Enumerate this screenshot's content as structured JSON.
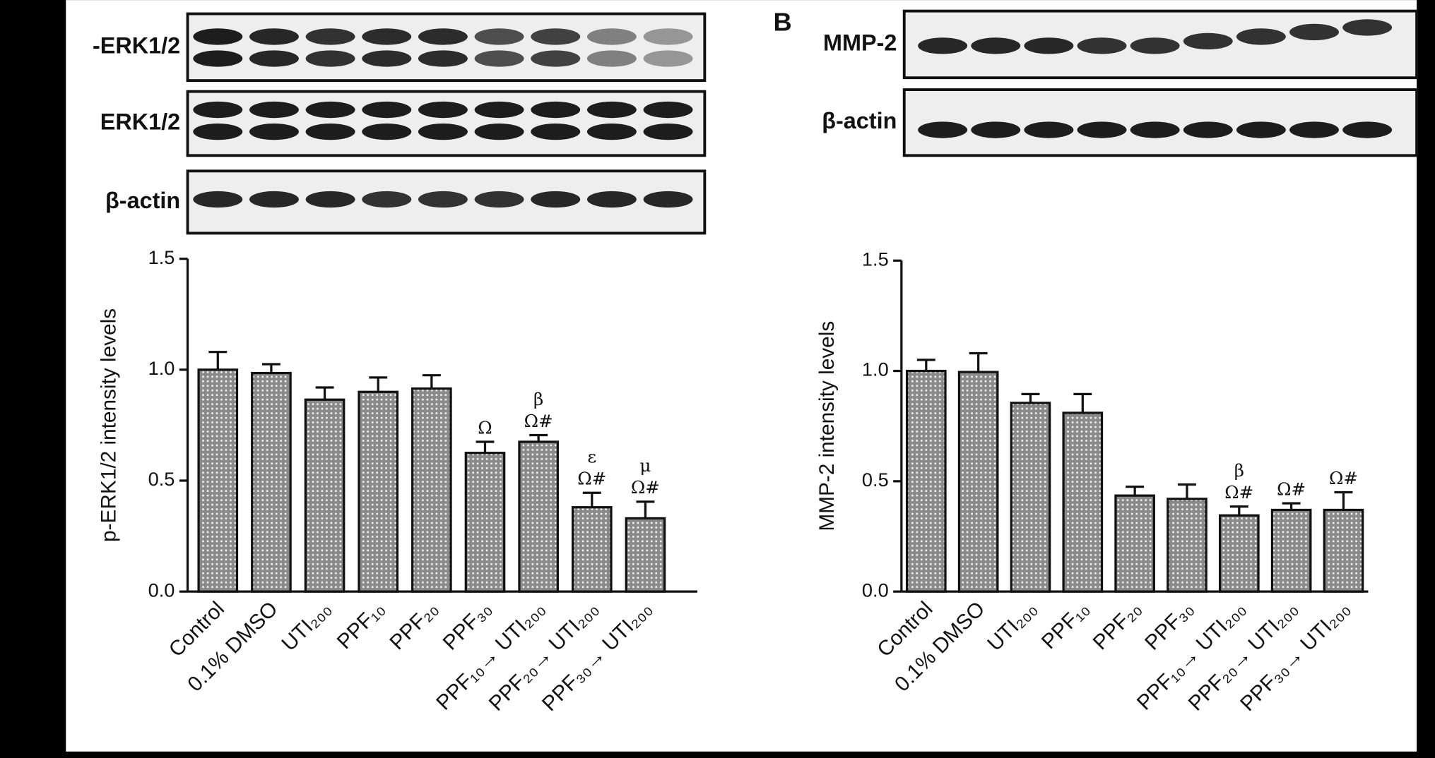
{
  "chart_data": [
    {
      "type": "bar",
      "blot_labels": [
        "-ERK1/2",
        "ERK1/2",
        "β-actin"
      ],
      "y_label": "p-ERK1/2 intensity levels",
      "categories": [
        "Control",
        "0.1% DMSO",
        "UTI₂₀₀",
        "PPF₁₀",
        "PPF₂₀",
        "PPF₃₀",
        "PPF₁₀→ UTI₂₀₀",
        "PPF₂₀→ UTI₂₀₀",
        "PPF₃₀→ UTI₂₀₀"
      ],
      "values": [
        1.0,
        0.985,
        0.865,
        0.9,
        0.915,
        0.625,
        0.675,
        0.38,
        0.33
      ],
      "errors": [
        0.08,
        0.04,
        0.055,
        0.065,
        0.06,
        0.05,
        0.03,
        0.065,
        0.075
      ],
      "annotations": [
        null,
        null,
        null,
        null,
        null,
        [
          "Ω"
        ],
        [
          "β",
          "Ω#"
        ],
        [
          "ε",
          "Ω#"
        ],
        [
          "μ",
          "Ω#"
        ]
      ],
      "color": "#8a8a8a",
      "ylim": [
        0,
        1.5
      ],
      "yticks": [
        {
          "value": 0,
          "label": "0.0"
        },
        {
          "value": 0.5,
          "label": "0.5"
        },
        {
          "value": 1,
          "label": "1.0"
        },
        {
          "value": 1.5,
          "label": "1.5"
        }
      ]
    },
    {
      "type": "bar",
      "panel_label": "B",
      "blot_labels": [
        "MMP-2",
        "β-actin"
      ],
      "y_label": "MMP-2 intensity levels",
      "categories": [
        "Control",
        "0.1% DMSO",
        "UTI₂₀₀",
        "PPF₁₀",
        "PPF₂₀",
        "PPF₃₀",
        "PPF₁₀→ UTI₂₀₀",
        "PPF₂₀→ UTI₂₀₀",
        "PPF₃₀→ UTI₂₀₀"
      ],
      "values": [
        1.0,
        0.995,
        0.855,
        0.81,
        0.435,
        0.42,
        0.345,
        0.37,
        0.37
      ],
      "errors": [
        0.05,
        0.085,
        0.04,
        0.085,
        0.04,
        0.065,
        0.04,
        0.03,
        0.08
      ],
      "annotations": [
        null,
        null,
        null,
        null,
        null,
        null,
        [
          "β",
          "Ω#"
        ],
        [
          "Ω#"
        ],
        [
          "Ω#"
        ]
      ],
      "color": "#8a8a8a",
      "ylim": [
        0,
        1.5
      ],
      "yticks": [
        {
          "value": 0,
          "label": "0.0"
        },
        {
          "value": 0.5,
          "label": "0.5"
        },
        {
          "value": 1,
          "label": "1.0"
        },
        {
          "value": 1.5,
          "label": "1.5"
        }
      ]
    }
  ]
}
